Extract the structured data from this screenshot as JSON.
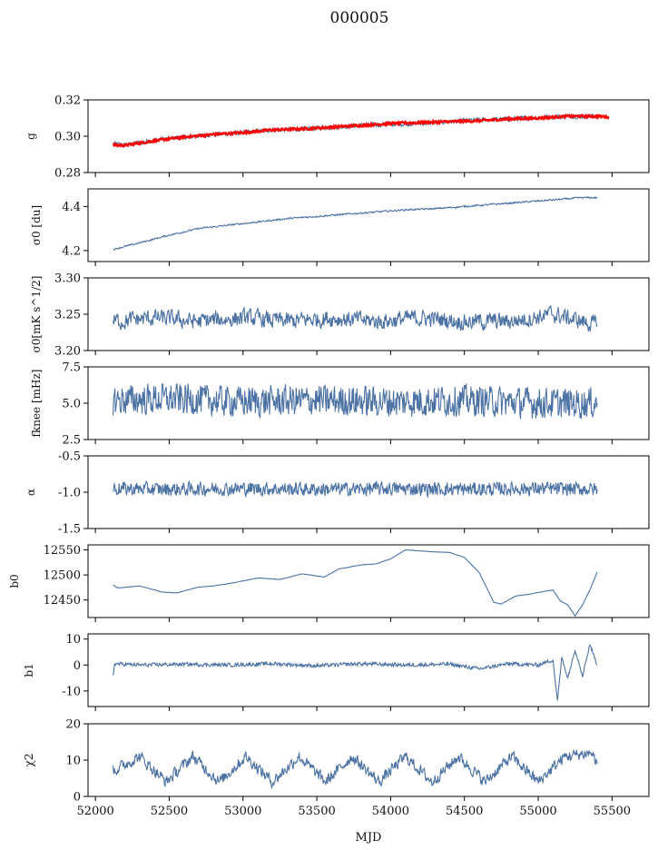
{
  "figure": {
    "title": "000005",
    "xlabel": "MJD"
  },
  "chart_data": [
    {
      "type": "line",
      "ylabel": "g",
      "ylim": [
        0.28,
        0.32
      ],
      "yticks": [
        "0.32",
        "0.30",
        "0.28"
      ],
      "xlim": [
        51950,
        55750
      ],
      "series": [
        {
          "color": "#4c72a4",
          "x": [
            52120,
            52200,
            52400,
            52600,
            52800,
            53000,
            53200,
            53400,
            53600,
            53800,
            54000,
            54200,
            54400,
            54600,
            54800,
            55000,
            55200,
            55400
          ],
          "y": [
            0.296,
            0.295,
            0.298,
            0.2995,
            0.301,
            0.302,
            0.3035,
            0.304,
            0.305,
            0.306,
            0.3065,
            0.307,
            0.308,
            0.309,
            0.3095,
            0.3105,
            0.311,
            0.311
          ]
        },
        {
          "color": "#ff0000",
          "x": [
            52120,
            52200,
            52400,
            52600,
            52800,
            53000,
            53200,
            53400,
            53600,
            53800,
            54000,
            54200,
            54400,
            54600,
            54800,
            55000,
            55200,
            55400,
            55480
          ],
          "y": [
            0.295,
            0.295,
            0.2975,
            0.2995,
            0.301,
            0.302,
            0.3035,
            0.304,
            0.305,
            0.306,
            0.307,
            0.3075,
            0.308,
            0.3085,
            0.3095,
            0.31,
            0.311,
            0.311,
            0.3105
          ]
        }
      ]
    },
    {
      "type": "line",
      "ylabel": "σ0 [du]",
      "ylim": [
        4.15,
        4.48
      ],
      "yticks": [
        "4.4",
        "4.2"
      ],
      "yticks_values": [
        4.4,
        4.2
      ],
      "xlim": [
        51950,
        55750
      ],
      "series": [
        {
          "color": "#4c72a4",
          "x": [
            52120,
            52300,
            52500,
            52700,
            52900,
            53100,
            53300,
            53500,
            53700,
            53900,
            54100,
            54300,
            54500,
            54700,
            54900,
            55100,
            55300,
            55400
          ],
          "y": [
            4.205,
            4.235,
            4.27,
            4.3,
            4.315,
            4.33,
            4.345,
            4.355,
            4.365,
            4.375,
            4.385,
            4.39,
            4.4,
            4.41,
            4.42,
            4.43,
            4.44,
            4.44
          ]
        }
      ]
    },
    {
      "type": "line",
      "ylabel": "σ0[mK s^1/2]",
      "ylim": [
        3.2,
        3.3
      ],
      "yticks": [
        "3.30",
        "3.25",
        "3.20"
      ],
      "xlim": [
        51950,
        55750
      ],
      "series": [
        {
          "color": "#4c72a4",
          "x": [
            52120,
            52400,
            52700,
            53000,
            53300,
            53600,
            53900,
            54200,
            54500,
            54800,
            55100,
            55400
          ],
          "y": [
            3.24,
            3.245,
            3.24,
            3.245,
            3.24,
            3.245,
            3.24,
            3.245,
            3.24,
            3.24,
            3.25,
            3.235
          ]
        }
      ]
    },
    {
      "type": "line",
      "ylabel": "fknee [mHz]",
      "ylim": [
        2.5,
        7.5
      ],
      "yticks": [
        "7.5",
        "5.0",
        "2.5"
      ],
      "xlim": [
        51950,
        55750
      ],
      "series": [
        {
          "color": "#4c72a4",
          "x": [
            52120,
            52500,
            53000,
            53500,
            54000,
            54500,
            55000,
            55400
          ],
          "y": [
            5.2,
            5.3,
            5.1,
            5.2,
            5.1,
            5.2,
            5.0,
            5.0
          ]
        }
      ]
    },
    {
      "type": "line",
      "ylabel": "α",
      "ylim": [
        -1.5,
        -0.5
      ],
      "yticks": [
        "-0.5",
        "-1.0",
        "-1.5"
      ],
      "xlim": [
        51950,
        55750
      ],
      "series": [
        {
          "color": "#4c72a4",
          "x": [
            52120,
            52500,
            53000,
            53500,
            54000,
            54500,
            55000,
            55400
          ],
          "y": [
            -0.95,
            -0.96,
            -0.95,
            -0.96,
            -0.95,
            -0.96,
            -0.95,
            -0.96
          ]
        }
      ]
    },
    {
      "type": "line",
      "ylabel": "b0",
      "ylim": [
        12415,
        12560
      ],
      "yticks": [
        "12550",
        "12500",
        "12450"
      ],
      "yticks_values": [
        12550,
        12500,
        12450
      ],
      "xlim": [
        51950,
        55750
      ],
      "series": [
        {
          "color": "#4c72a4",
          "x": [
            52120,
            52150,
            52300,
            52450,
            52550,
            52700,
            52800,
            52950,
            53100,
            53250,
            53400,
            53550,
            53650,
            53800,
            53900,
            54000,
            54100,
            54200,
            54300,
            54400,
            54500,
            54600,
            54700,
            54750,
            54850,
            54950,
            55050,
            55100,
            55150,
            55200,
            55250,
            55300,
            55350,
            55400
          ],
          "y": [
            12480,
            12474,
            12478,
            12466,
            12464,
            12476,
            12478,
            12485,
            12494,
            12491,
            12502,
            12496,
            12512,
            12520,
            12522,
            12532,
            12550,
            12548,
            12546,
            12545,
            12535,
            12505,
            12445,
            12442,
            12458,
            12462,
            12468,
            12470,
            12448,
            12440,
            12418,
            12440,
            12470,
            12506
          ]
        }
      ]
    },
    {
      "type": "line",
      "ylabel": "b1",
      "ylim": [
        -16,
        12
      ],
      "yticks": [
        "10",
        "0",
        "-10"
      ],
      "yticks_values": [
        10,
        0,
        -10
      ],
      "xlim": [
        51950,
        55750
      ],
      "series": [
        {
          "color": "#4c72a4",
          "x": [
            52120,
            52130,
            52300,
            52600,
            52900,
            53200,
            53500,
            53800,
            54100,
            54400,
            54600,
            54800,
            55000,
            55100,
            55130,
            55160,
            55200,
            55250,
            55300,
            55350,
            55400
          ],
          "y": [
            -4,
            0.5,
            0,
            0.3,
            0,
            0.5,
            -0.3,
            0.5,
            0,
            0.3,
            -1.5,
            0.5,
            0,
            2,
            -14,
            3,
            -5,
            6,
            -4,
            8,
            0
          ]
        }
      ]
    },
    {
      "type": "line",
      "ylabel": "χ2",
      "ylim": [
        0,
        20
      ],
      "yticks": [
        "20",
        "10",
        "0"
      ],
      "xticks": [
        "52000",
        "52500",
        "53000",
        "53500",
        "54000",
        "54500",
        "55000",
        "55500"
      ],
      "xticks_values": [
        52000,
        52500,
        53000,
        53500,
        54000,
        54500,
        55000,
        55500
      ],
      "xlim": [
        51950,
        55750
      ],
      "series": [
        {
          "color": "#4c72a4",
          "x": [
            52120,
            52300,
            52480,
            52660,
            52840,
            53020,
            53200,
            53380,
            53560,
            53740,
            53920,
            54100,
            54280,
            54460,
            54640,
            54820,
            55000,
            55180,
            55360,
            55400
          ],
          "y": [
            7,
            11,
            4,
            11,
            4,
            11,
            4,
            11,
            4,
            11,
            4,
            11,
            4,
            11,
            4,
            11,
            4,
            11,
            12,
            9
          ]
        }
      ]
    }
  ]
}
